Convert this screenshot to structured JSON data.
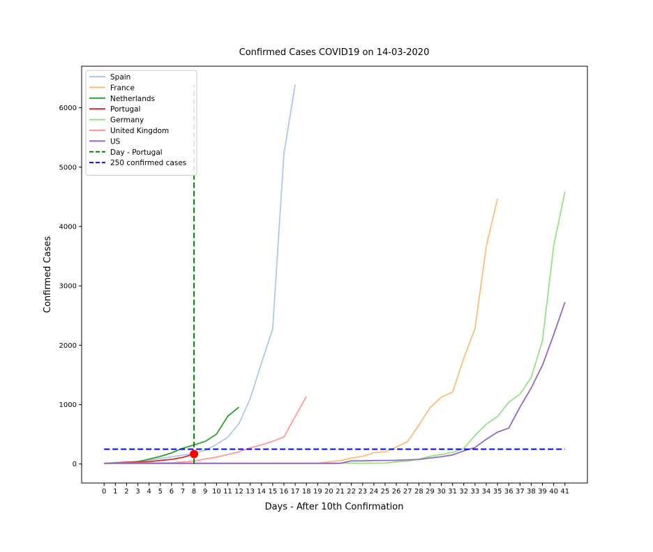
{
  "chart_data": {
    "type": "line",
    "title": "Confirmed Cases COVID19 on 14-03-2020",
    "xlabel": "Days - After 10th Confirmation",
    "ylabel": "Confirmed Cases",
    "xlim": [
      -2,
      43
    ],
    "ylim": [
      -320,
      6700
    ],
    "x_ticks": [
      0,
      1,
      2,
      3,
      4,
      5,
      6,
      7,
      8,
      9,
      10,
      11,
      12,
      13,
      14,
      15,
      16,
      17,
      18,
      19,
      20,
      21,
      22,
      23,
      24,
      25,
      26,
      27,
      28,
      29,
      30,
      31,
      32,
      33,
      34,
      35,
      36,
      37,
      38,
      39,
      40,
      41
    ],
    "y_ticks": [
      0,
      1000,
      2000,
      3000,
      4000,
      5000,
      6000
    ],
    "grid": false,
    "legend_position": "top-left",
    "series": [
      {
        "name": "Spain",
        "color": "#aec7e8",
        "style": "solid",
        "values": [
          10,
          25,
          30,
          45,
          66,
          90,
          120,
          150,
          180,
          230,
          330,
          450,
          680,
          1100,
          1700,
          2280,
          5230,
          6390
        ]
      },
      {
        "name": "France",
        "color": "#ffbb78",
        "style": "solid",
        "values": [
          12,
          12,
          12,
          12,
          12,
          12,
          12,
          12,
          12,
          12,
          12,
          12,
          12,
          12,
          12,
          12,
          12,
          12,
          12,
          14,
          38,
          57,
          100,
          130,
          191,
          204,
          285,
          377,
          653,
          949,
          1126,
          1209,
          1784,
          2281,
          3661,
          4469
        ]
      },
      {
        "name": "Netherlands",
        "color": "#2ca02c",
        "style": "solid",
        "values": [
          10,
          18,
          24,
          38,
          82,
          128,
          188,
          265,
          321,
          382,
          503,
          804,
          959
        ]
      },
      {
        "name": "Portugal",
        "color": "#d62728",
        "style": "solid",
        "values": [
          13,
          20,
          30,
          30,
          41,
          59,
          78,
          112,
          169
        ]
      },
      {
        "name": "Germany",
        "color": "#98df8a",
        "style": "solid",
        "values": [
          14,
          14,
          14,
          14,
          14,
          14,
          14,
          14,
          14,
          14,
          14,
          14,
          14,
          14,
          14,
          14,
          14,
          14,
          14,
          14,
          14,
          14,
          14,
          14,
          14,
          16,
          35,
          48,
          79,
          130,
          159,
          196,
          262,
          482,
          670,
          799,
          1040,
          1176,
          1457,
          2078,
          3675,
          4585
        ]
      },
      {
        "name": "United Kingdom",
        "color": "#ff9896",
        "style": "solid",
        "values": [
          10,
          13,
          15,
          15,
          18,
          19,
          20,
          35,
          50,
          85,
          115,
          160,
          206,
          273,
          321,
          382,
          456,
          800,
          1140
        ]
      },
      {
        "name": "US",
        "color": "#9467bd",
        "style": "solid",
        "values": [
          11,
          11,
          11,
          11,
          11,
          11,
          11,
          11,
          11,
          11,
          11,
          11,
          11,
          11,
          11,
          11,
          11,
          11,
          11,
          11,
          11,
          11,
          53,
          53,
          59,
          60,
          62,
          70,
          76,
          101,
          122,
          153,
          221,
          278,
          417,
          537,
          605,
          959,
          1281,
          1663,
          2179,
          2726
        ]
      },
      {
        "name": "Day - Portugal",
        "color": "#008000",
        "style": "dashed",
        "type": "vline",
        "x": 8,
        "y_range": [
          0,
          6390
        ]
      },
      {
        "name": "250  confirmed cases",
        "color": "#0000ff",
        "style": "dashed",
        "type": "hline",
        "y": 250,
        "x_range": [
          0,
          41
        ]
      }
    ],
    "markers": [
      {
        "x": 8,
        "y": 169,
        "color": "#ff0000"
      }
    ]
  }
}
